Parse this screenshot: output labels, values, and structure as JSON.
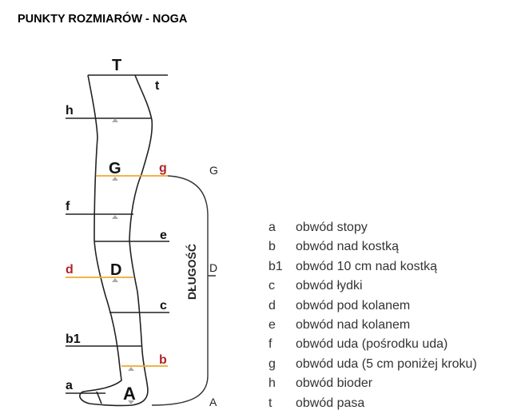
{
  "title": "PUNKTY ROZMIARÓW - NOGA",
  "diagram": {
    "inner_labels": {
      "T": "T",
      "G": "G",
      "D": "D",
      "A": "A"
    },
    "point_labels": {
      "t": "t",
      "h": "h",
      "g": "g",
      "f": "f",
      "e": "e",
      "d": "d",
      "c": "c",
      "b1": "b1",
      "b": "b",
      "a": "a"
    },
    "length_label": "DŁUGOŚĆ",
    "length_marks": {
      "G": "G",
      "D": "D",
      "A": "A"
    },
    "colors": {
      "outline": "#222222",
      "highlight": "#f0a830",
      "highlight_label": "#b0242a",
      "marker": "#aaaaaa"
    }
  },
  "legend": [
    {
      "key": "a",
      "text": "obwód stopy"
    },
    {
      "key": "b",
      "text": "obwód nad kostką"
    },
    {
      "key": "b1",
      "text": "obwód 10 cm nad kostką"
    },
    {
      "key": "c",
      "text": "obwód łydki"
    },
    {
      "key": "d",
      "text": "obwód pod kolanem"
    },
    {
      "key": "e",
      "text": "obwód nad kolanem"
    },
    {
      "key": "f",
      "text": "obwód uda (pośrodku uda)"
    },
    {
      "key": "g",
      "text": "obwód uda (5 cm poniżej kroku)"
    },
    {
      "key": "h",
      "text": "obwód bioder"
    },
    {
      "key": "t",
      "text": "obwód pasa"
    }
  ]
}
